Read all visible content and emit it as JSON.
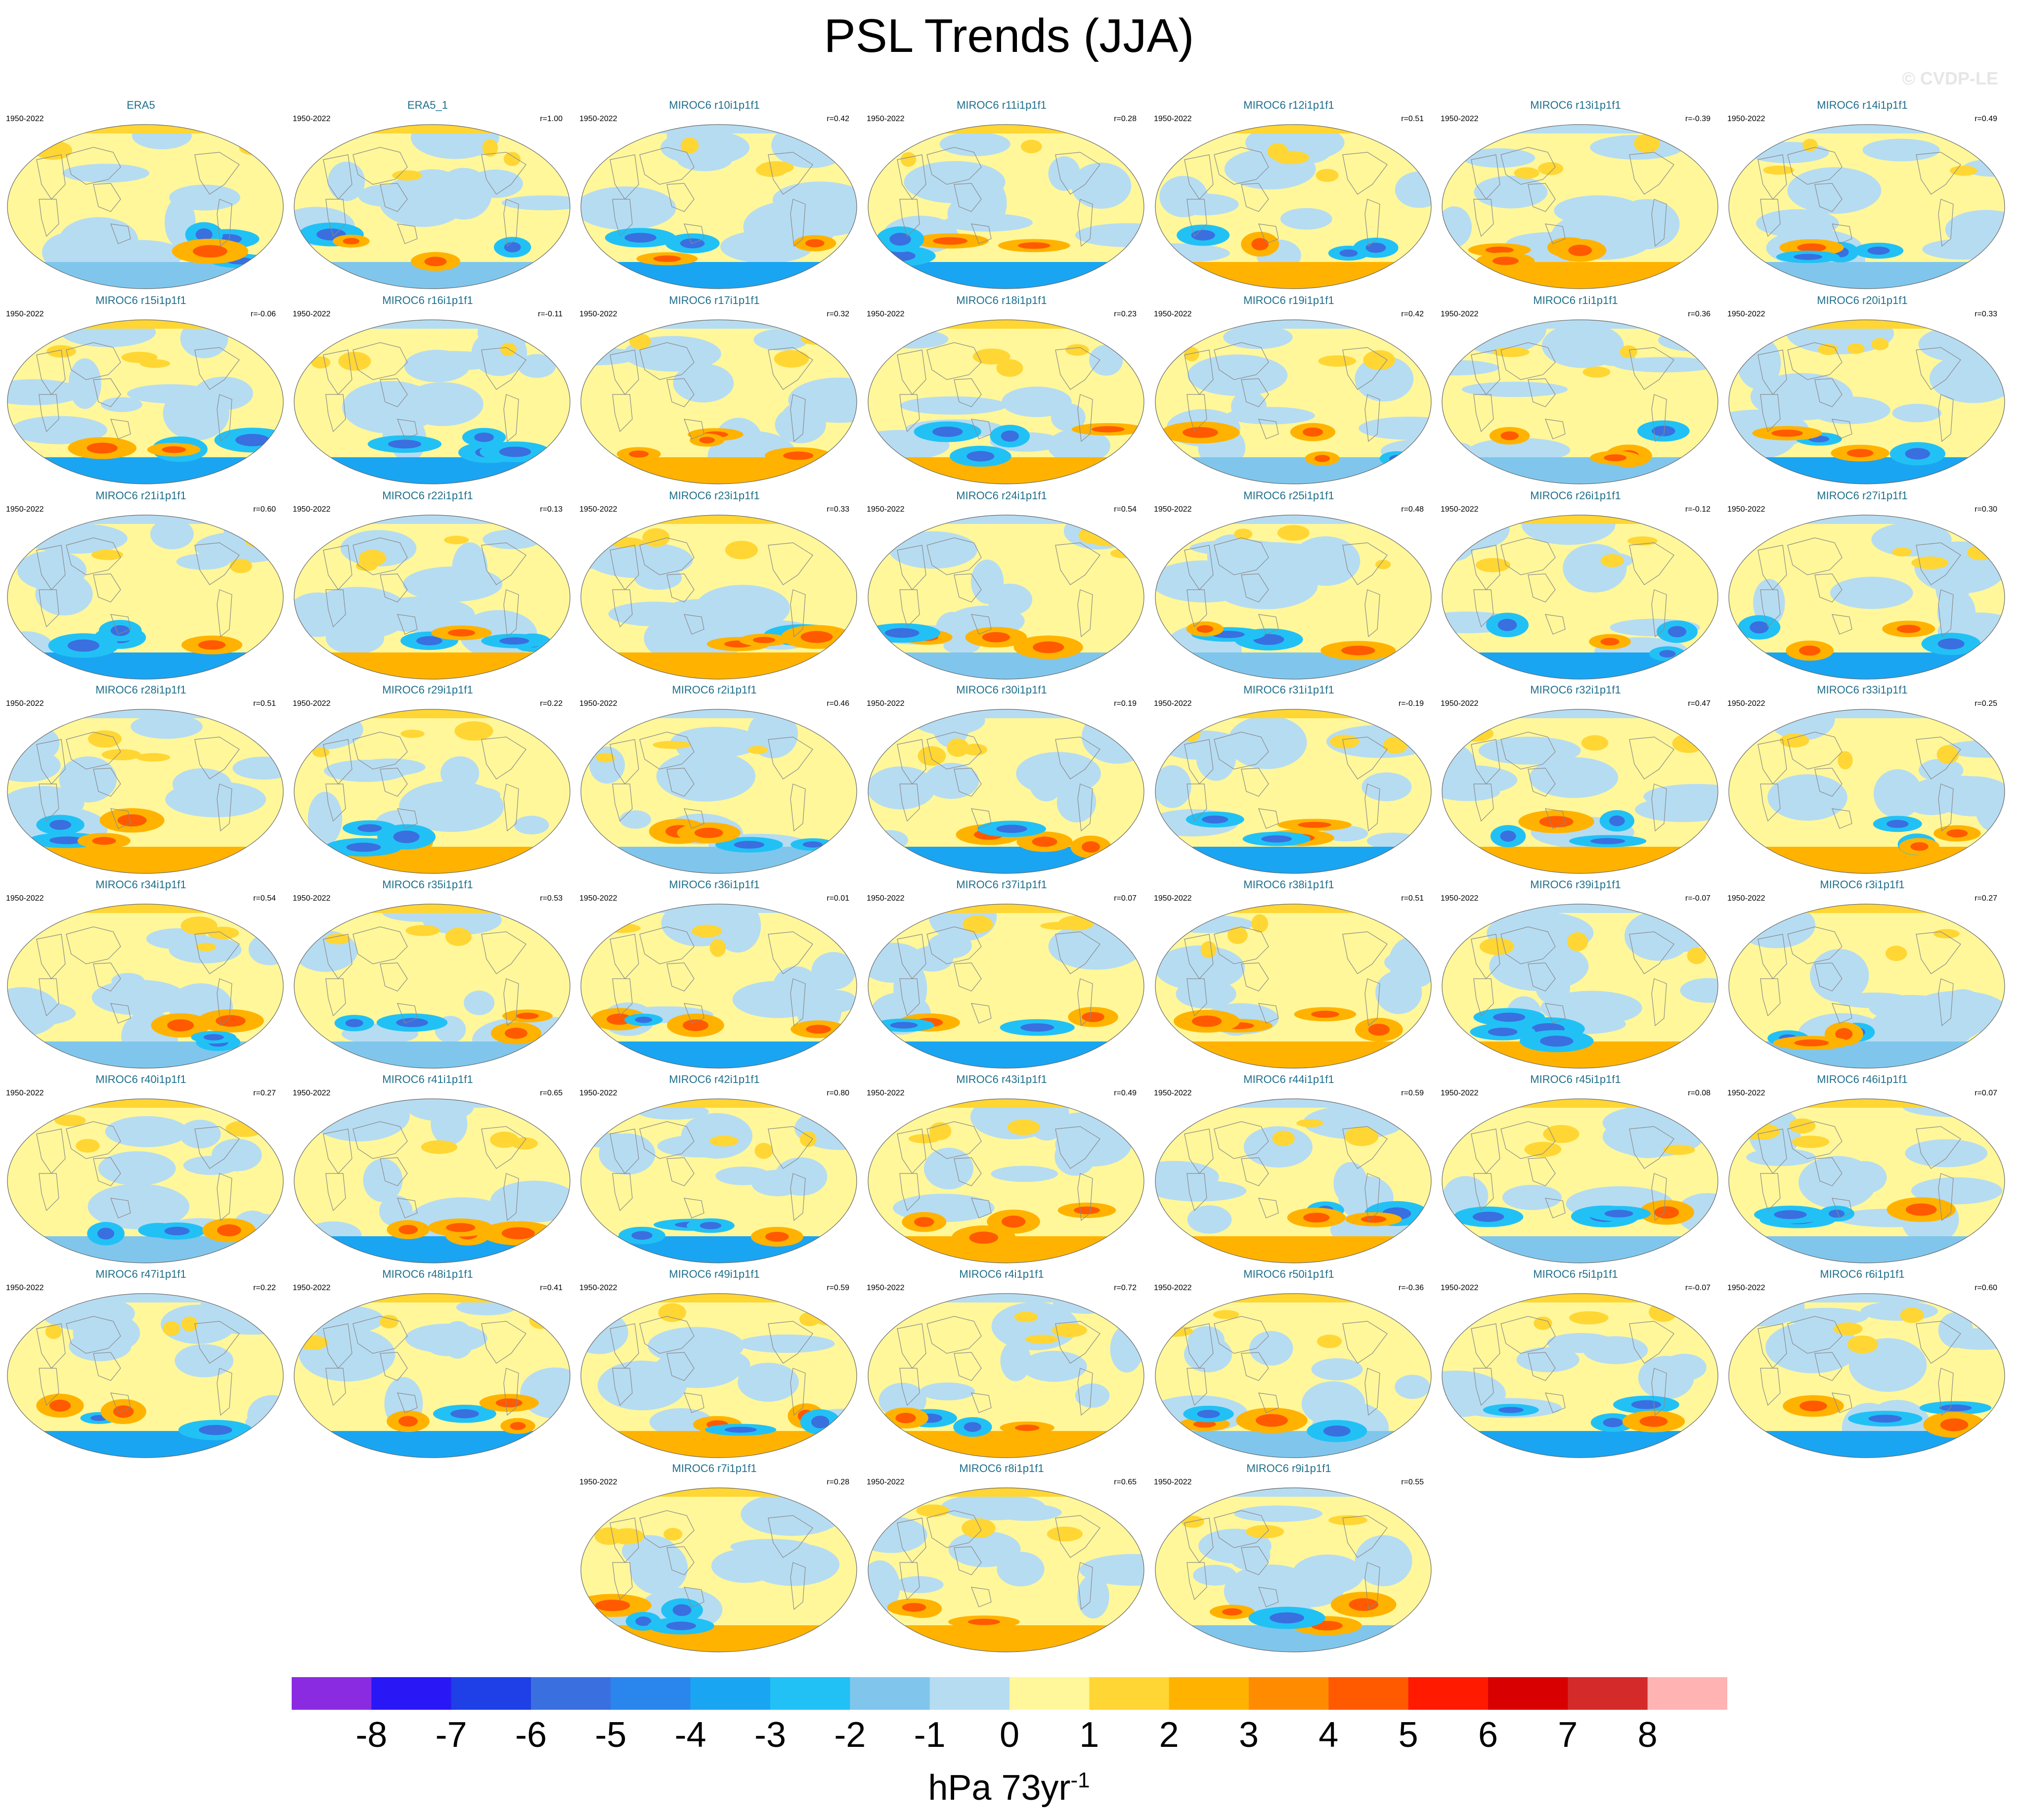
{
  "title": "PSL Trends (JJA)",
  "watermark": "© CVDP-LE",
  "chart_data": {
    "type": "heatmap",
    "title": "PSL Trends (JJA)",
    "period": "1950-2022",
    "projection": "global map (Robinson-like), Pacific-centered",
    "variable": "PSL",
    "season": "JJA",
    "panels": [
      {
        "name": "ERA5",
        "period": "1950-2022",
        "corr": ""
      },
      {
        "name": "ERA5_1",
        "period": "1950-2022",
        "corr": "r=1.00"
      },
      {
        "name": "MIROC6 r10i1p1f1",
        "period": "1950-2022",
        "corr": "r=0.42"
      },
      {
        "name": "MIROC6 r11i1p1f1",
        "period": "1950-2022",
        "corr": "r=0.28"
      },
      {
        "name": "MIROC6 r12i1p1f1",
        "period": "1950-2022",
        "corr": "r=0.51"
      },
      {
        "name": "MIROC6 r13i1p1f1",
        "period": "1950-2022",
        "corr": "r=-0.39"
      },
      {
        "name": "MIROC6 r14i1p1f1",
        "period": "1950-2022",
        "corr": "r=0.49"
      },
      {
        "name": "MIROC6 r15i1p1f1",
        "period": "1950-2022",
        "corr": "r=-0.06"
      },
      {
        "name": "MIROC6 r16i1p1f1",
        "period": "1950-2022",
        "corr": "r=-0.11"
      },
      {
        "name": "MIROC6 r17i1p1f1",
        "period": "1950-2022",
        "corr": "r=0.32"
      },
      {
        "name": "MIROC6 r18i1p1f1",
        "period": "1950-2022",
        "corr": "r=0.23"
      },
      {
        "name": "MIROC6 r19i1p1f1",
        "period": "1950-2022",
        "corr": "r=0.42"
      },
      {
        "name": "MIROC6 r1i1p1f1",
        "period": "1950-2022",
        "corr": "r=0.36"
      },
      {
        "name": "MIROC6 r20i1p1f1",
        "period": "1950-2022",
        "corr": "r=0.33"
      },
      {
        "name": "MIROC6 r21i1p1f1",
        "period": "1950-2022",
        "corr": "r=0.60"
      },
      {
        "name": "MIROC6 r22i1p1f1",
        "period": "1950-2022",
        "corr": "r=0.13"
      },
      {
        "name": "MIROC6 r23i1p1f1",
        "period": "1950-2022",
        "corr": "r=0.33"
      },
      {
        "name": "MIROC6 r24i1p1f1",
        "period": "1950-2022",
        "corr": "r=0.54"
      },
      {
        "name": "MIROC6 r25i1p1f1",
        "period": "1950-2022",
        "corr": "r=0.48"
      },
      {
        "name": "MIROC6 r26i1p1f1",
        "period": "1950-2022",
        "corr": "r=-0.12"
      },
      {
        "name": "MIROC6 r27i1p1f1",
        "period": "1950-2022",
        "corr": "r=0.30"
      },
      {
        "name": "MIROC6 r28i1p1f1",
        "period": "1950-2022",
        "corr": "r=0.51"
      },
      {
        "name": "MIROC6 r29i1p1f1",
        "period": "1950-2022",
        "corr": "r=0.22"
      },
      {
        "name": "MIROC6 r2i1p1f1",
        "period": "1950-2022",
        "corr": "r=0.46"
      },
      {
        "name": "MIROC6 r30i1p1f1",
        "period": "1950-2022",
        "corr": "r=0.19"
      },
      {
        "name": "MIROC6 r31i1p1f1",
        "period": "1950-2022",
        "corr": "r=-0.19"
      },
      {
        "name": "MIROC6 r32i1p1f1",
        "period": "1950-2022",
        "corr": "r=0.47"
      },
      {
        "name": "MIROC6 r33i1p1f1",
        "period": "1950-2022",
        "corr": "r=0.25"
      },
      {
        "name": "MIROC6 r34i1p1f1",
        "period": "1950-2022",
        "corr": "r=0.54"
      },
      {
        "name": "MIROC6 r35i1p1f1",
        "period": "1950-2022",
        "corr": "r=0.53"
      },
      {
        "name": "MIROC6 r36i1p1f1",
        "period": "1950-2022",
        "corr": "r=0.01"
      },
      {
        "name": "MIROC6 r37i1p1f1",
        "period": "1950-2022",
        "corr": "r=0.07"
      },
      {
        "name": "MIROC6 r38i1p1f1",
        "period": "1950-2022",
        "corr": "r=0.51"
      },
      {
        "name": "MIROC6 r39i1p1f1",
        "period": "1950-2022",
        "corr": "r=-0.07"
      },
      {
        "name": "MIROC6 r3i1p1f1",
        "period": "1950-2022",
        "corr": "r=0.27"
      },
      {
        "name": "MIROC6 r40i1p1f1",
        "period": "1950-2022",
        "corr": "r=0.27"
      },
      {
        "name": "MIROC6 r41i1p1f1",
        "period": "1950-2022",
        "corr": "r=0.65"
      },
      {
        "name": "MIROC6 r42i1p1f1",
        "period": "1950-2022",
        "corr": "r=0.80"
      },
      {
        "name": "MIROC6 r43i1p1f1",
        "period": "1950-2022",
        "corr": "r=0.49"
      },
      {
        "name": "MIROC6 r44i1p1f1",
        "period": "1950-2022",
        "corr": "r=0.59"
      },
      {
        "name": "MIROC6 r45i1p1f1",
        "period": "1950-2022",
        "corr": "r=0.08"
      },
      {
        "name": "MIROC6 r46i1p1f1",
        "period": "1950-2022",
        "corr": "r=0.07"
      },
      {
        "name": "MIROC6 r47i1p1f1",
        "period": "1950-2022",
        "corr": "r=0.22"
      },
      {
        "name": "MIROC6 r48i1p1f1",
        "period": "1950-2022",
        "corr": "r=0.41"
      },
      {
        "name": "MIROC6 r49i1p1f1",
        "period": "1950-2022",
        "corr": "r=0.59"
      },
      {
        "name": "MIROC6 r4i1p1f1",
        "period": "1950-2022",
        "corr": "r=0.72"
      },
      {
        "name": "MIROC6 r50i1p1f1",
        "period": "1950-2022",
        "corr": "r=-0.36"
      },
      {
        "name": "MIROC6 r5i1p1f1",
        "period": "1950-2022",
        "corr": "r=-0.07"
      },
      {
        "name": "MIROC6 r6i1p1f1",
        "period": "1950-2022",
        "corr": "r=0.60"
      },
      {
        "name": "MIROC6 r7i1p1f1",
        "period": "1950-2022",
        "corr": "r=0.28"
      },
      {
        "name": "MIROC6 r8i1p1f1",
        "period": "1950-2022",
        "corr": "r=0.65"
      },
      {
        "name": "MIROC6 r9i1p1f1",
        "period": "1950-2022",
        "corr": "r=0.55"
      }
    ],
    "colorbar": {
      "labels": [
        "-8",
        "-7",
        "-6",
        "-5",
        "-4",
        "-3",
        "-2",
        "-1",
        "0",
        "1",
        "2",
        "3",
        "4",
        "5",
        "6",
        "7",
        "8"
      ],
      "colors": [
        "#8a2be2",
        "#2a17f5",
        "#1e40e6",
        "#3a6fe0",
        "#2a86ec",
        "#1aa5f2",
        "#22c1f5",
        "#80c6ec",
        "#b6dcf2",
        "#fff79a",
        "#ffd633",
        "#ffb300",
        "#ff8c00",
        "#ff5a00",
        "#ff1a00",
        "#d80000",
        "#d42a2a",
        "#ffb3b3"
      ],
      "units_main": "hPa 73yr",
      "units_exp": "-1"
    }
  }
}
